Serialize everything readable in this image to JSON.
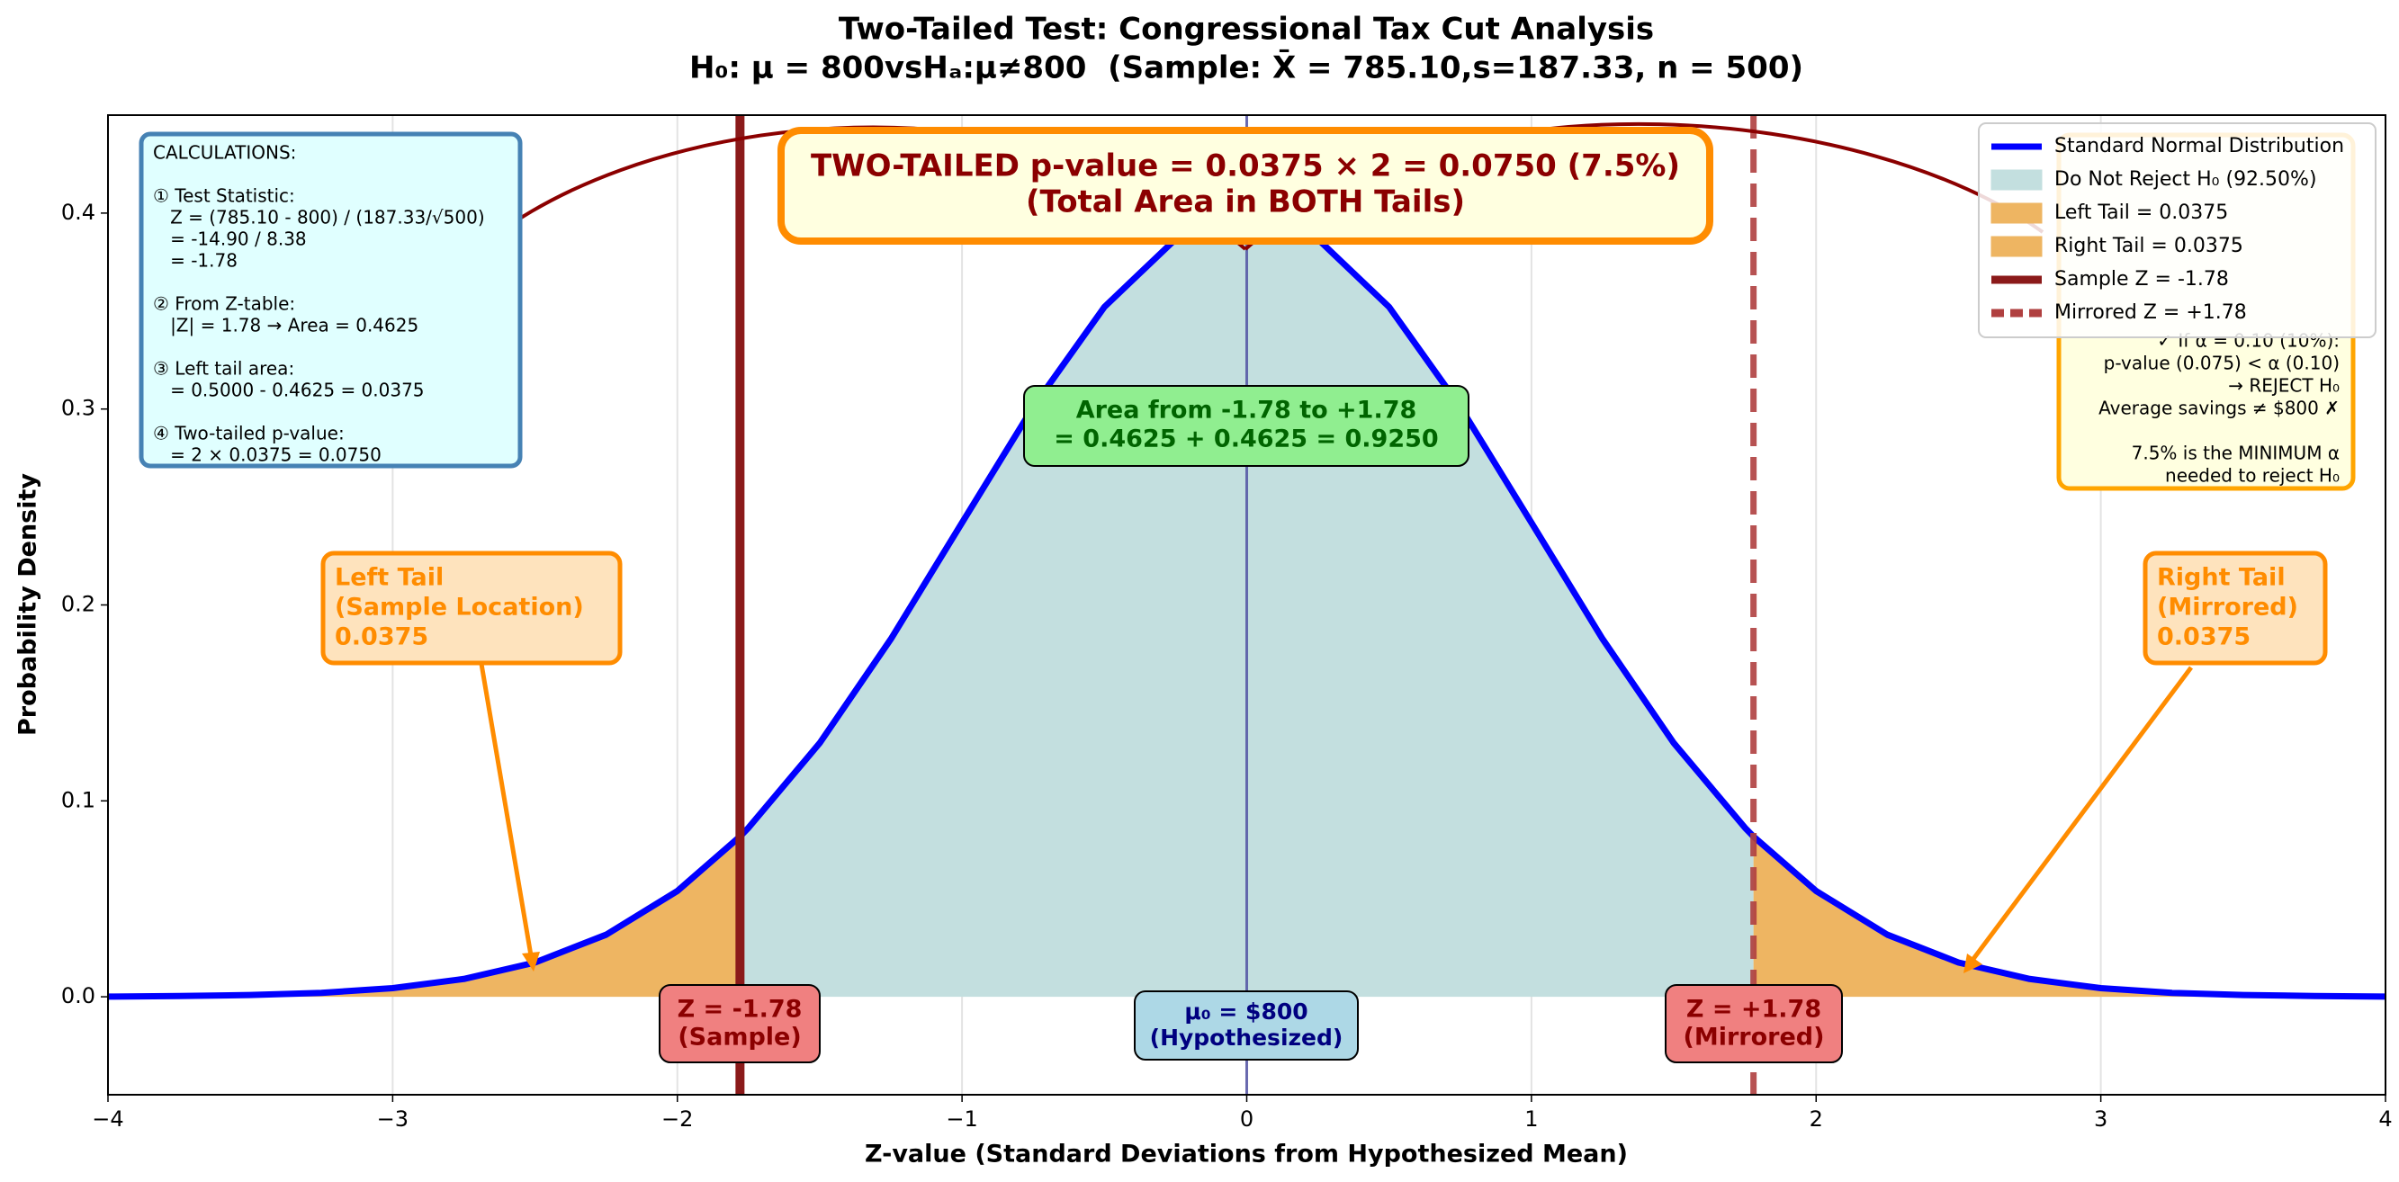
{
  "chart_data": {
    "type": "area",
    "title": "Two-Tailed Test: Congressional Tax Cut Analysis",
    "subtitle": "H₀: μ = 800vsHₐ:μ≠800  (Sample: X̄ = 785.10,s=187.33, n = 500)",
    "xlabel": "Z-value (Standard Deviations from Hypothesized Mean)",
    "ylabel": "Probability Density",
    "xlim": [
      -4,
      4
    ],
    "ylim": [
      -0.05,
      0.45
    ],
    "xticks": [
      {
        "value": -4,
        "label": "−4"
      },
      {
        "value": -3,
        "label": "−3"
      },
      {
        "value": -2,
        "label": "−2"
      },
      {
        "value": -1,
        "label": "−1"
      },
      0,
      1,
      2,
      3,
      4
    ],
    "yticks": [
      {
        "value": 0,
        "label": "0.0"
      },
      {
        "value": 0.1,
        "label": "0.1"
      },
      {
        "value": 0.2,
        "label": "0.2"
      },
      {
        "value": 0.3,
        "label": "0.3"
      },
      {
        "value": 0.4,
        "label": "0.4"
      }
    ],
    "grid": "x",
    "legend": "upper right",
    "x": [
      -4,
      -3.75,
      -3.5,
      -3.25,
      -3,
      -2.75,
      -2.5,
      -2.25,
      -2,
      -1.78,
      -1.75,
      -1.5,
      -1.25,
      -1,
      -0.75,
      -0.5,
      -0.25,
      0,
      0.25,
      0.5,
      0.75,
      1,
      1.25,
      1.5,
      1.75,
      1.78,
      2,
      2.25,
      2.5,
      2.75,
      3,
      3.25,
      3.5,
      3.75,
      4
    ],
    "series": [
      {
        "name": "Standard Normal Distribution",
        "color": "#0000ff",
        "values": [
          0.0001,
          0.0004,
          0.0009,
          0.002,
          0.0044,
          0.0091,
          0.0175,
          0.0317,
          0.054,
          0.0818,
          0.0863,
          0.1295,
          0.1826,
          0.242,
          0.3011,
          0.3521,
          0.3867,
          0.3989,
          0.3867,
          0.3521,
          0.3011,
          0.242,
          0.1826,
          0.1295,
          0.0863,
          0.0818,
          0.054,
          0.0317,
          0.0175,
          0.0091,
          0.0044,
          0.002,
          0.0009,
          0.0004,
          0.0001
        ]
      }
    ],
    "regions": [
      {
        "name": "Do Not Reject H₀ (92.50%)",
        "color": "#c3dfdf",
        "from": -1.78,
        "to": 1.78
      },
      {
        "name": "Left Tail = 0.0375",
        "color": "#eeb562",
        "from": -4,
        "to": -1.78
      },
      {
        "name": "Right Tail = 0.0375",
        "color": "#eeb562",
        "from": 1.78,
        "to": 4
      }
    ],
    "vlines": [
      {
        "name": "Sample Z = -1.78",
        "value": -1.78,
        "color": "#8b1a1a",
        "style": "solid"
      },
      {
        "name": "Mirrored Z = +1.78",
        "value": 1.78,
        "color": "#b04040",
        "style": "dashed"
      }
    ],
    "reference_x": 0,
    "annotations": {
      "calculations": {
        "title": "CALCULATIONS:",
        "steps": [
          [
            "① Test Statistic:",
            "   Z = (785.10 - 800) / (187.33/√500)",
            "   = -14.90 / 8.38",
            "   = -1.78"
          ],
          [
            "② From Z-table:",
            "   |Z| = 1.78 → Area = 0.4625"
          ],
          [
            "③ Left tail area:",
            "   = 0.5000 - 0.4625 = 0.0375"
          ],
          [
            "④ Two-tailed p-value:",
            "   = 2 × 0.0375 = 0.0750"
          ]
        ]
      },
      "pvalue_box": [
        "TWO-TAILED p-value = 0.0375 × 2 = 0.0750 (7.5%)",
        "(Total Area in BOTH Tails)"
      ],
      "area_box": [
        "Area from -1.78 to +1.78",
        "= 0.4625 + 0.4625 = 0.9250"
      ],
      "left_tail": [
        "Left Tail",
        "(Sample Location)",
        "0.0375"
      ],
      "right_tail": [
        "Right Tail",
        "(Mirrored)",
        "0.0375"
      ],
      "z_sample": [
        "Z = -1.78",
        "(Sample)"
      ],
      "mu": [
        "μ₀ = $800",
        "(Hypothesized)"
      ],
      "z_mirror": [
        "Z = +1.78",
        "(Mirrored)"
      ],
      "decision": [
        [
          "✓ If α = 0.10 (10%):",
          "p-value (0.075) < α (0.10)",
          "→ REJECT H₀",
          "Average savings ≠ $800 ✗"
        ],
        [
          "7.5% is the MINIMUM α",
          "needed to reject H₀"
        ]
      ]
    }
  }
}
